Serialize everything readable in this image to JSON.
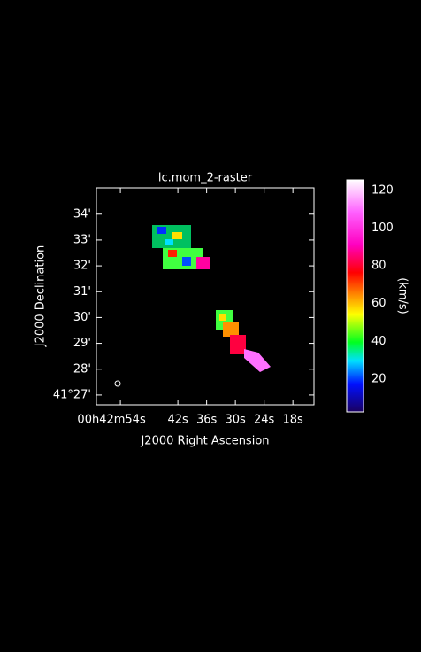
{
  "chart_data": {
    "type": "raster",
    "title": "lc.mom_2-raster",
    "x_label": "J2000 Right Ascension",
    "y_label": "J2000 Declination",
    "xlim": [
      59,
      13.6
    ],
    "xticks": [
      {
        "value": 54,
        "label": "00h42m54s"
      },
      {
        "value": 42,
        "label": "42s"
      },
      {
        "value": 36,
        "label": "36s"
      },
      {
        "value": 30,
        "label": "30s"
      },
      {
        "value": 24,
        "label": "24s"
      },
      {
        "value": 18,
        "label": "18s"
      }
    ],
    "ylim": [
      26.62,
      35.02
    ],
    "yticks": [
      {
        "value": 27,
        "label": "41°27'"
      },
      {
        "value": 28,
        "label": "28'"
      },
      {
        "value": 29,
        "label": "29'"
      },
      {
        "value": 30,
        "label": "30'"
      },
      {
        "value": 31,
        "label": "31'"
      },
      {
        "value": 32,
        "label": "32'"
      },
      {
        "value": 33,
        "label": "33'"
      },
      {
        "value": 34,
        "label": "34'"
      }
    ],
    "colorbar": {
      "label": "(km/s)",
      "lim": [
        2.6,
        125.6
      ],
      "ticks": [
        20,
        40,
        60,
        80,
        100,
        120
      ]
    }
  }
}
